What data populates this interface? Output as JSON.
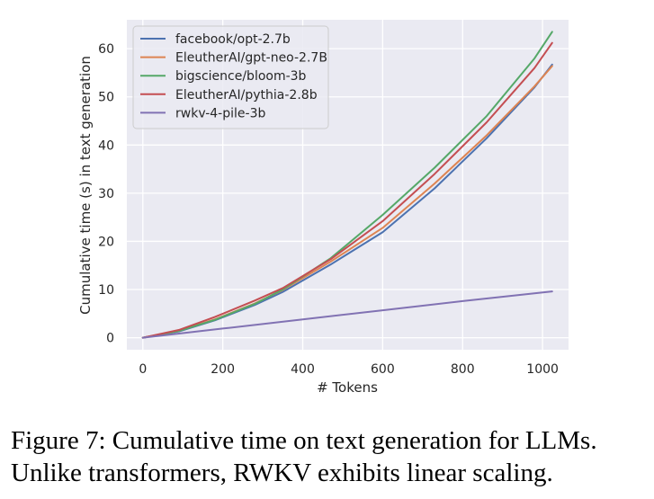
{
  "chart_data": {
    "type": "line",
    "xlabel": "# Tokens",
    "ylabel": "Cumulative time (s) in text generation",
    "xlim": [
      -40,
      1065
    ],
    "ylim": [
      -2.5,
      66
    ],
    "xticks": [
      0,
      200,
      400,
      600,
      800,
      1000
    ],
    "yticks": [
      0,
      10,
      20,
      30,
      40,
      50,
      60
    ],
    "grid": true,
    "legend_position": "top-left",
    "series": [
      {
        "name": "facebook/opt-2.7b",
        "color": "#4c72b0",
        "points": [
          [
            0,
            0
          ],
          [
            90,
            1.3
          ],
          [
            180,
            3.6
          ],
          [
            280,
            6.8
          ],
          [
            350,
            9.5
          ],
          [
            470,
            15.2
          ],
          [
            600,
            21.9
          ],
          [
            730,
            31.0
          ],
          [
            860,
            41.4
          ],
          [
            980,
            52.0
          ],
          [
            1024,
            56.7
          ]
        ]
      },
      {
        "name": "EleutherAI/gpt-neo-2.7B",
        "color": "#dd8452",
        "points": [
          [
            0,
            0
          ],
          [
            90,
            1.4
          ],
          [
            180,
            3.8
          ],
          [
            280,
            7.1
          ],
          [
            350,
            9.9
          ],
          [
            470,
            15.8
          ],
          [
            600,
            22.8
          ],
          [
            730,
            32.0
          ],
          [
            860,
            42.0
          ],
          [
            980,
            52.2
          ],
          [
            1024,
            56.4
          ]
        ]
      },
      {
        "name": "bigscience/bloom-3b",
        "color": "#55a868",
        "points": [
          [
            0,
            0
          ],
          [
            90,
            1.4
          ],
          [
            180,
            3.7
          ],
          [
            280,
            7.0
          ],
          [
            350,
            10.0
          ],
          [
            470,
            16.5
          ],
          [
            600,
            25.5
          ],
          [
            730,
            35.3
          ],
          [
            860,
            46.0
          ],
          [
            980,
            58.0
          ],
          [
            1024,
            63.5
          ]
        ]
      },
      {
        "name": "EleutherAI/pythia-2.8b",
        "color": "#c44e52",
        "points": [
          [
            0,
            0
          ],
          [
            90,
            1.6
          ],
          [
            180,
            4.3
          ],
          [
            280,
            7.7
          ],
          [
            350,
            10.3
          ],
          [
            470,
            16.3
          ],
          [
            600,
            24.2
          ],
          [
            730,
            34.0
          ],
          [
            860,
            44.7
          ],
          [
            980,
            56.0
          ],
          [
            1024,
            61.2
          ]
        ]
      },
      {
        "name": "rwkv-4-pile-3b",
        "color": "#8172b3",
        "points": [
          [
            0,
            0
          ],
          [
            200,
            1.9
          ],
          [
            400,
            3.8
          ],
          [
            600,
            5.7
          ],
          [
            800,
            7.6
          ],
          [
            1024,
            9.6
          ]
        ]
      }
    ]
  },
  "caption": {
    "line1": "Figure 7: Cumulative time on text generation for LLMs.",
    "line2": "Unlike transformers, RWKV exhibits linear scaling."
  }
}
